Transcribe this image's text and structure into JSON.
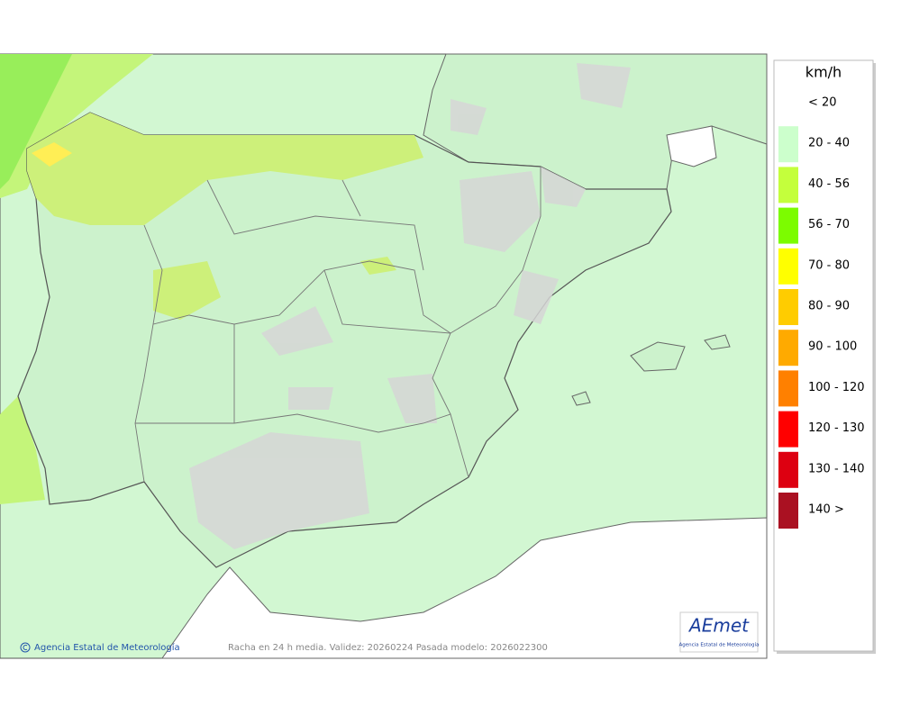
{
  "legend": {
    "title": "km/h",
    "items": [
      {
        "label": "< 20",
        "color": "#ffffff"
      },
      {
        "label": "20 - 40",
        "color": "#ccffcc"
      },
      {
        "label": "40 - 56",
        "color": "#c4ff3c"
      },
      {
        "label": "56 - 70",
        "color": "#7cfc00"
      },
      {
        "label": "70 - 80",
        "color": "#ffff00"
      },
      {
        "label": "80 - 90",
        "color": "#ffcc00"
      },
      {
        "label": "90 - 100",
        "color": "#ffaa00"
      },
      {
        "label": "100 - 120",
        "color": "#ff8000"
      },
      {
        "label": "120 - 130",
        "color": "#ff0000"
      },
      {
        "label": "130 - 140",
        "color": "#dd0011"
      },
      {
        "label": "140 >",
        "color": "#aa1122"
      }
    ]
  },
  "footer": {
    "credit": "Agencia Estatal de Meteorología",
    "caption": "Racha en 24 h media. Validez: 20260224 Pasada modelo: 2026022300"
  },
  "logo": {
    "name": "AEmet",
    "subtitle": "Agencia Estatal de Meteorología"
  }
}
